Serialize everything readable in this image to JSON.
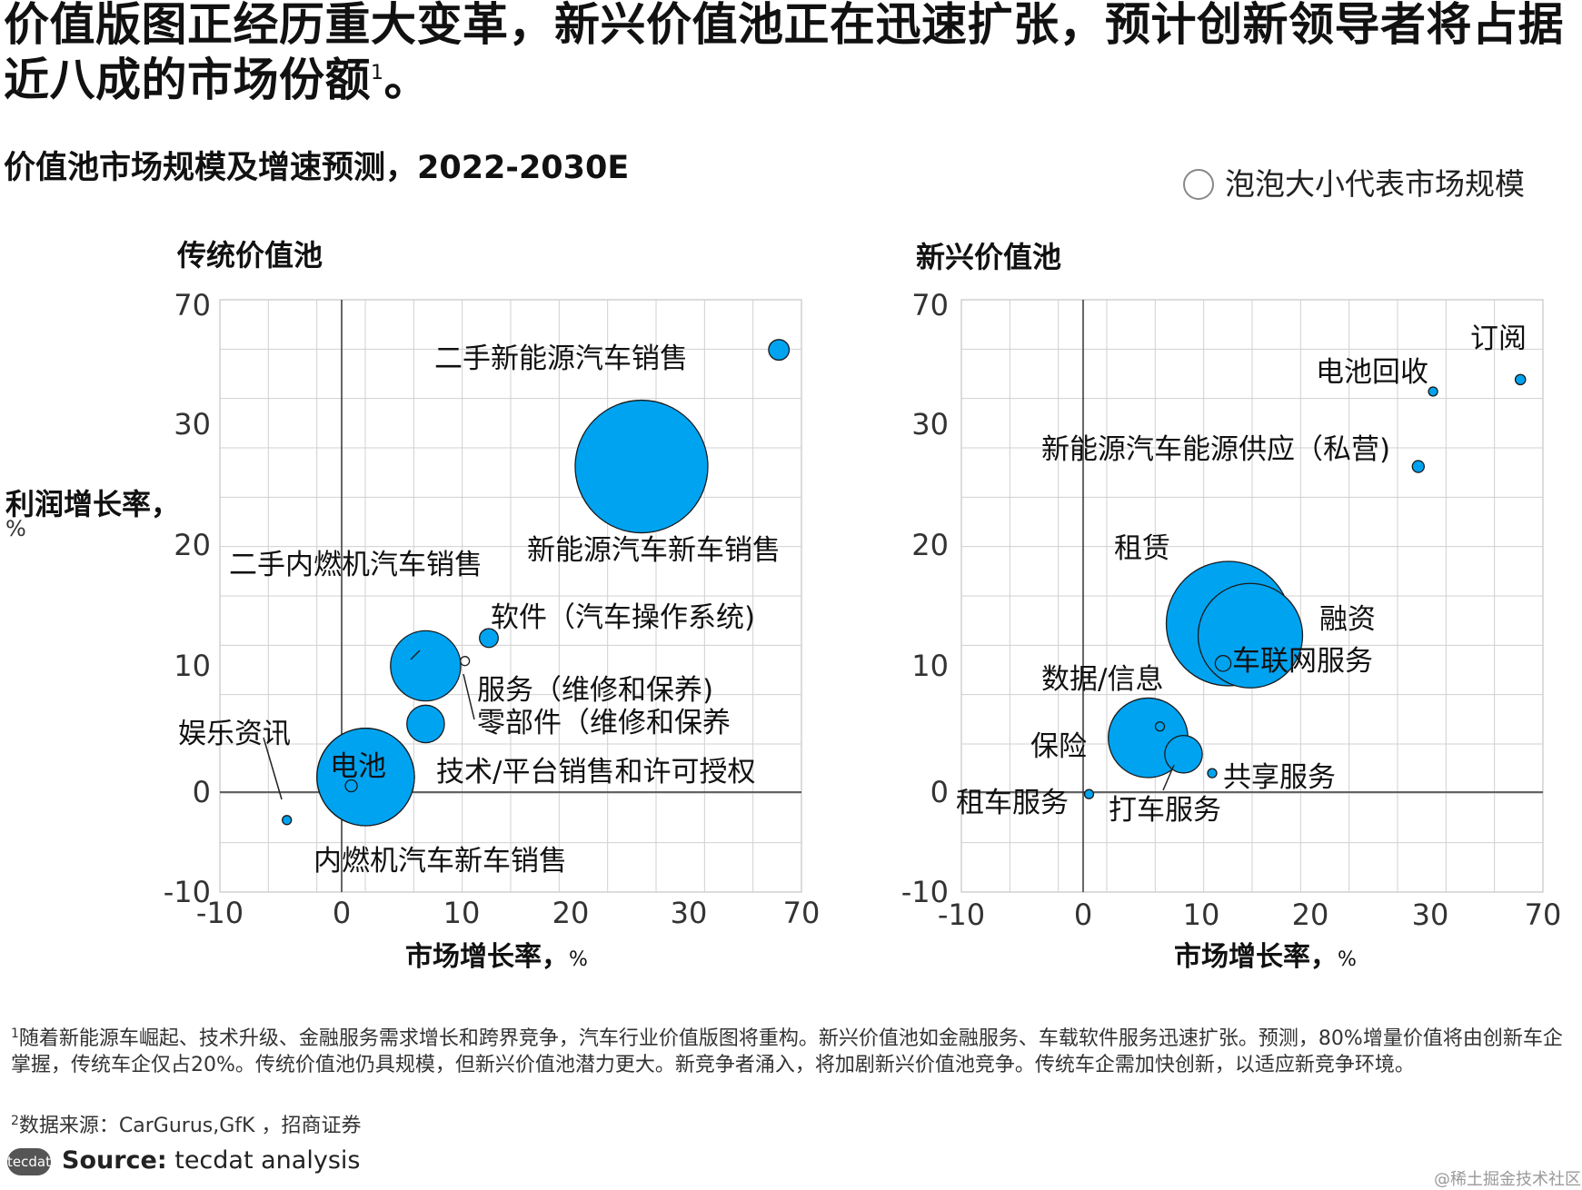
{
  "headline": "价值版图正经历重大变革，新兴价值池正在迅速扩张，预计创新领导者将占据近八成的市场份额",
  "headline_sup": "1",
  "headline_end": "。",
  "subtitle": "价值池市场规模及增速预测，2022-2030E",
  "legend_text": "泡泡大小代表市场规模",
  "y_axis_label": "利润增长率，",
  "y_axis_unit": "%",
  "x_axis_label": "市场增长率，",
  "x_axis_unit": "%",
  "colors": {
    "bubble": "#00a3f0",
    "bubble_stroke": "#1a1a1a",
    "grid": "#d0d0d0"
  },
  "chart_data": [
    {
      "type": "scatter",
      "title": "传统价值池",
      "x_ticks": [
        "-10",
        "0",
        "10",
        "20",
        "30",
        "70"
      ],
      "y_ticks": [
        "70",
        "30",
        "20",
        "10",
        "0",
        "-10"
      ],
      "points": [
        {
          "label": "二手新能源汽车销售",
          "x": 62,
          "y": 55,
          "size": 1.2
        },
        {
          "label": "新能源汽车新车销售",
          "x": 26,
          "y": 26.5,
          "size": 50
        },
        {
          "label": "二手内燃机汽车销售",
          "x": 7,
          "y": 10,
          "size": 14
        },
        {
          "label": "软件（汽车操作系统)",
          "x": 12.5,
          "y": 12.3,
          "size": 1
        },
        {
          "label": "服务（维修和保养)",
          "x": 10.3,
          "y": 10.4,
          "size": 0.2
        },
        {
          "label": "零部件（维修和保养",
          "x": 7,
          "y": 5.4,
          "size": 4
        },
        {
          "label": "电池",
          "x": 2,
          "y": 1.2,
          "size": 27
        },
        {
          "label": "技术/平台销售和许可授权",
          "x": 0.8,
          "y": 0.5,
          "size": 0.4
        },
        {
          "label": "内燃机汽车新车销售",
          "x": 2,
          "y": 1.2,
          "size": 27
        },
        {
          "label": "娱乐资讯",
          "x": -4.5,
          "y": -2.8,
          "size": 0.2
        }
      ]
    },
    {
      "type": "scatter",
      "title": "新兴价值池",
      "x_ticks": [
        "-10",
        "0",
        "10",
        "20",
        "30",
        "70"
      ],
      "y_ticks": [
        "70",
        "30",
        "20",
        "10",
        "0",
        "-10"
      ],
      "points": [
        {
          "label": "订阅",
          "x": 62,
          "y": 45,
          "size": 0.3
        },
        {
          "label": "电池回收",
          "x": 31,
          "y": 41,
          "size": 0.1
        },
        {
          "label": "新能源汽车能源供应（私营)",
          "x": 29,
          "y": 26.5,
          "size": 0.4
        },
        {
          "label": "租赁",
          "x": 12.5,
          "y": 13.5,
          "size": 44
        },
        {
          "label": "融资",
          "x": 14.5,
          "y": 12.5,
          "size": 31
        },
        {
          "label": "车联网服务",
          "x": 12,
          "y": 10.2,
          "size": 0.7
        },
        {
          "label": "数据/信息",
          "x": 6.5,
          "y": 5.2,
          "size": 0.1
        },
        {
          "label": "保险",
          "x": 5.5,
          "y": 4.3,
          "size": 18
        },
        {
          "label": "打车服务",
          "x": 8.5,
          "y": 3,
          "size": 4
        },
        {
          "label": "共享服务",
          "x": 11,
          "y": 1.5,
          "size": 0.1
        },
        {
          "label": "租车服务",
          "x": 0.5,
          "y": -0.2,
          "size": 0.1
        }
      ]
    }
  ],
  "footnote1_sup": "1",
  "footnote1": "随着新能源车崛起、技术升级、金融服务需求增长和跨界竞争，汽车行业价值版图将重构。新兴价值池如金融服务、车载软件服务迅速扩张。预测，80%增量价值将由创新车企掌握，传统车企仅占20%。传统价值池仍具规模，但新兴价值池潜力更大。新竞争者涌入，将加剧新兴价值池竞争。传统车企需加快创新，以适应新竞争环境。",
  "footnote2_sup": "2",
  "footnote2": "数据来源：CarGurus,GfK ，招商证券",
  "source_logo": "tecdat",
  "source_bold": "Source:",
  "source_text": " tecdat analysis",
  "watermark": "@稀土掘金技术社区"
}
